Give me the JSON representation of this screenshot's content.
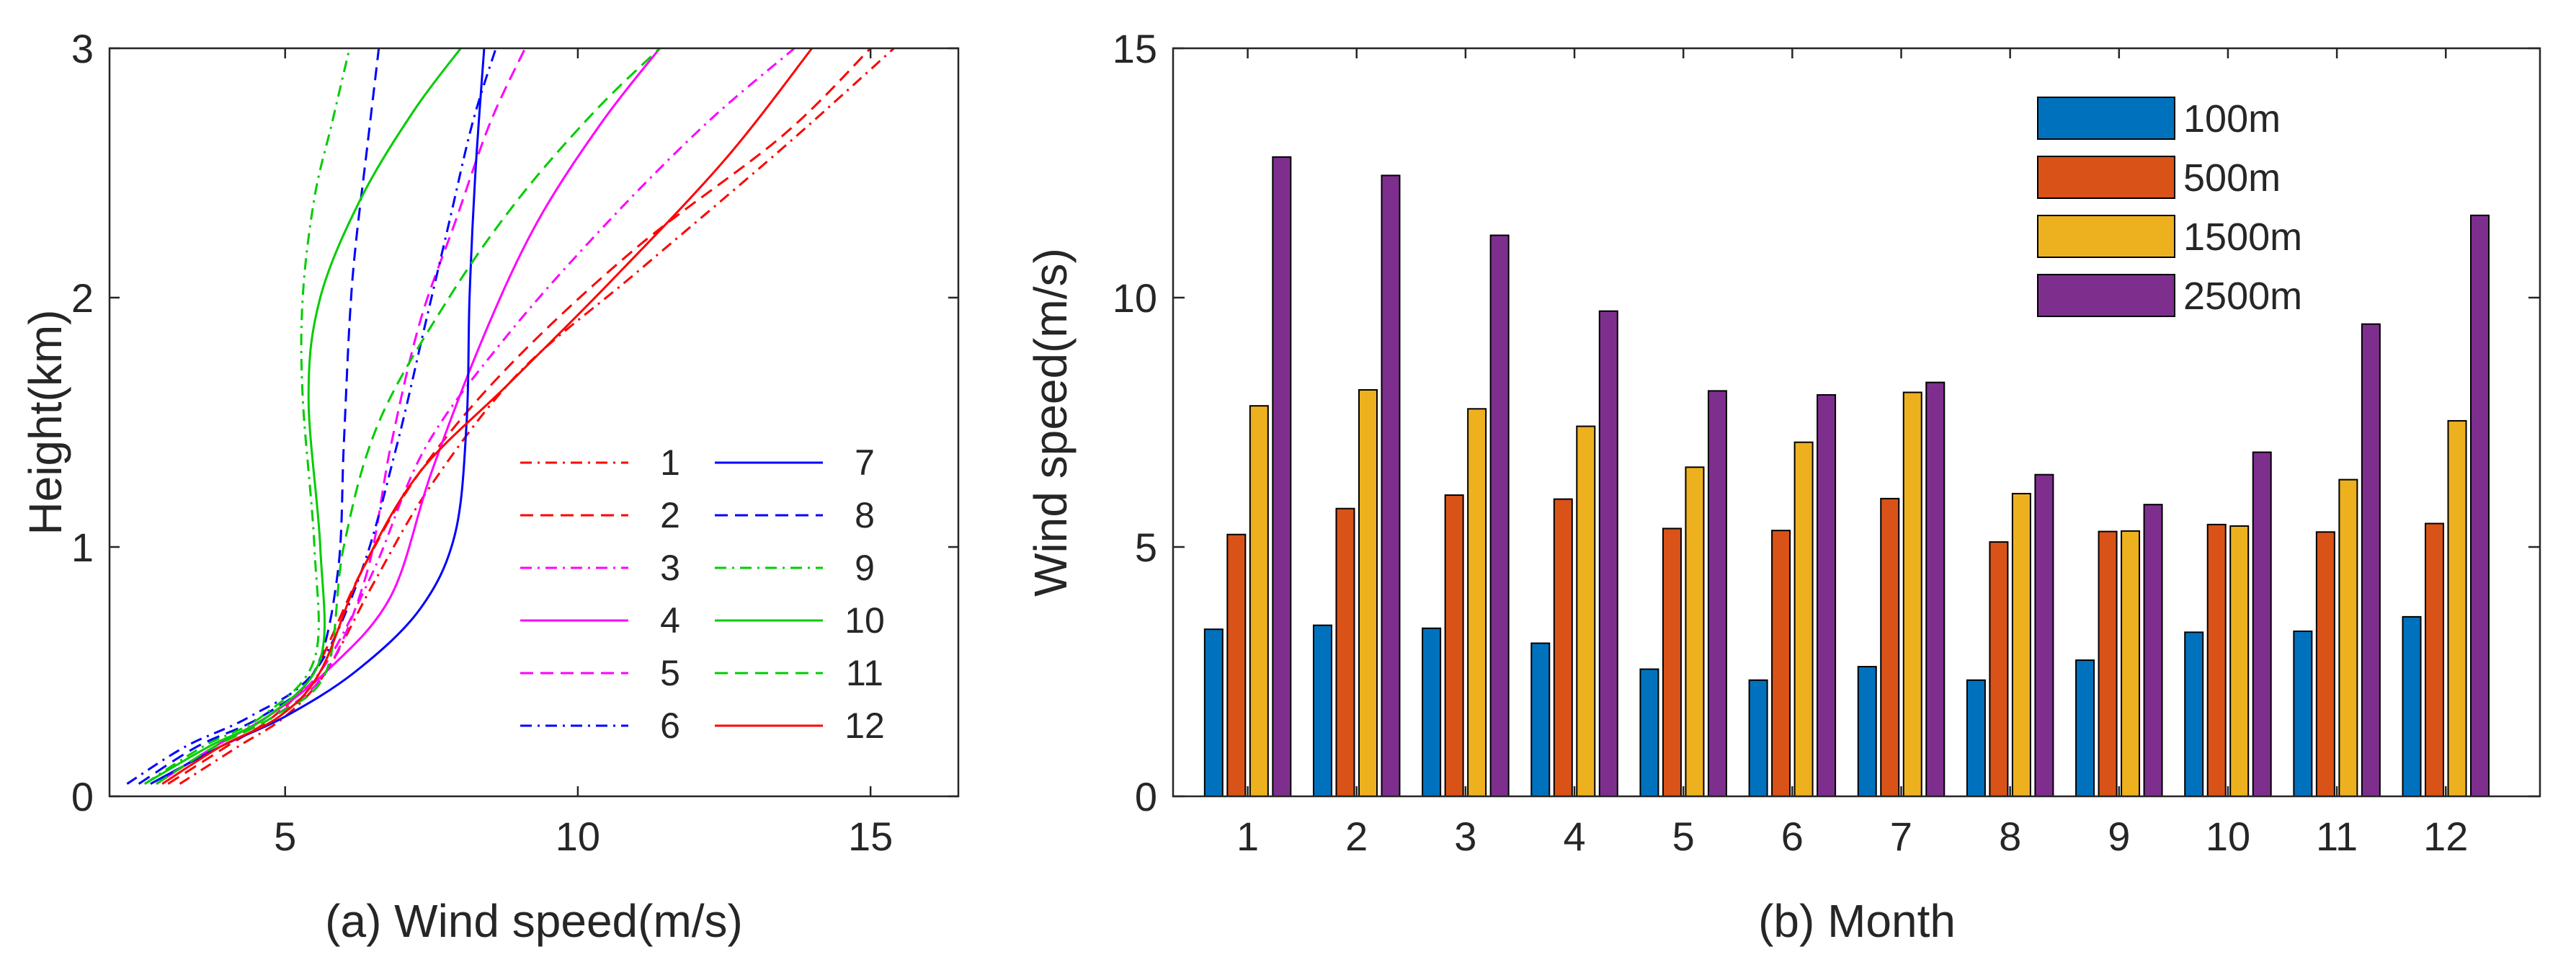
{
  "chart_data": [
    {
      "type": "line",
      "title": "",
      "xlabel": "(a) Wind speed(m/s)",
      "ylabel": "Height(km)",
      "xlim": [
        2,
        16.5
      ],
      "ylim": [
        0,
        3
      ],
      "xticks": [
        "5",
        "10",
        "15"
      ],
      "yticks": [
        "0",
        "1",
        "2",
        "3"
      ],
      "legend_position": "bottom-right",
      "series": [
        {
          "name": "1",
          "color": "#ff0000",
          "dash": "dashdot",
          "points": [
            [
              3.2,
              0.05
            ],
            [
              4.2,
              0.2
            ],
            [
              5.0,
              0.32
            ],
            [
              5.7,
              0.5
            ],
            [
              6.5,
              0.85
            ],
            [
              7.5,
              1.25
            ],
            [
              9.0,
              1.7
            ],
            [
              11.0,
              2.1
            ],
            [
              13.5,
              2.6
            ],
            [
              15.4,
              3.0
            ]
          ]
        },
        {
          "name": "2",
          "color": "#ff0000",
          "dash": "dashed",
          "points": [
            [
              3.0,
              0.05
            ],
            [
              4.0,
              0.2
            ],
            [
              4.8,
              0.32
            ],
            [
              5.5,
              0.5
            ],
            [
              6.3,
              0.9
            ],
            [
              7.3,
              1.3
            ],
            [
              8.8,
              1.72
            ],
            [
              11.0,
              2.2
            ],
            [
              13.5,
              2.65
            ],
            [
              15.0,
              3.0
            ]
          ]
        },
        {
          "name": "3",
          "color": "#ff00ff",
          "dash": "dashdot",
          "points": [
            [
              2.8,
              0.05
            ],
            [
              3.8,
              0.2
            ],
            [
              4.7,
              0.32
            ],
            [
              5.6,
              0.5
            ],
            [
              6.5,
              0.9
            ],
            [
              7.4,
              1.4
            ],
            [
              8.8,
              1.85
            ],
            [
              10.5,
              2.3
            ],
            [
              12.2,
              2.7
            ],
            [
              13.7,
              3.0
            ]
          ]
        },
        {
          "name": "4",
          "color": "#ff00ff",
          "dash": "solid",
          "points": [
            [
              2.8,
              0.05
            ],
            [
              3.8,
              0.2
            ],
            [
              4.7,
              0.32
            ],
            [
              5.7,
              0.5
            ],
            [
              6.8,
              0.8
            ],
            [
              7.5,
              1.3
            ],
            [
              8.4,
              1.85
            ],
            [
              9.3,
              2.3
            ],
            [
              10.4,
              2.7
            ],
            [
              11.4,
              3.0
            ]
          ]
        },
        {
          "name": "5",
          "color": "#ff00ff",
          "dash": "dashed",
          "points": [
            [
              2.8,
              0.05
            ],
            [
              3.8,
              0.2
            ],
            [
              4.8,
              0.32
            ],
            [
              5.7,
              0.5
            ],
            [
              6.4,
              0.9
            ],
            [
              6.8,
              1.4
            ],
            [
              7.3,
              1.9
            ],
            [
              7.9,
              2.3
            ],
            [
              8.5,
              2.7
            ],
            [
              9.1,
              3.0
            ]
          ]
        },
        {
          "name": "6",
          "color": "#0000ff",
          "dash": "dashdot",
          "points": [
            [
              2.3,
              0.05
            ],
            [
              3.3,
              0.2
            ],
            [
              4.4,
              0.32
            ],
            [
              5.5,
              0.5
            ],
            [
              6.3,
              0.9
            ],
            [
              6.9,
              1.4
            ],
            [
              7.4,
              1.9
            ],
            [
              7.8,
              2.3
            ],
            [
              8.2,
              2.7
            ],
            [
              8.6,
              3.0
            ]
          ]
        },
        {
          "name": "7",
          "color": "#0000ff",
          "dash": "solid",
          "points": [
            [
              2.7,
              0.05
            ],
            [
              3.9,
              0.2
            ],
            [
              5.0,
              0.32
            ],
            [
              6.2,
              0.5
            ],
            [
              7.3,
              0.75
            ],
            [
              7.9,
              1.05
            ],
            [
              8.1,
              1.5
            ],
            [
              8.15,
              2.0
            ],
            [
              8.25,
              2.5
            ],
            [
              8.4,
              3.0
            ]
          ]
        },
        {
          "name": "8",
          "color": "#0000ff",
          "dash": "dashed",
          "points": [
            [
              2.5,
              0.05
            ],
            [
              3.5,
              0.2
            ],
            [
              4.6,
              0.32
            ],
            [
              5.5,
              0.5
            ],
            [
              5.9,
              0.9
            ],
            [
              6.0,
              1.4
            ],
            [
              6.1,
              1.9
            ],
            [
              6.2,
              2.2
            ],
            [
              6.4,
              2.6
            ],
            [
              6.6,
              3.0
            ]
          ]
        },
        {
          "name": "9",
          "color": "#00cc00",
          "dash": "dashdot",
          "points": [
            [
              2.6,
              0.05
            ],
            [
              3.6,
              0.2
            ],
            [
              4.6,
              0.32
            ],
            [
              5.5,
              0.55
            ],
            [
              5.5,
              1.0
            ],
            [
              5.3,
              1.6
            ],
            [
              5.3,
              2.0
            ],
            [
              5.5,
              2.4
            ],
            [
              5.8,
              2.7
            ],
            [
              6.1,
              3.0
            ]
          ]
        },
        {
          "name": "10",
          "color": "#00cc00",
          "dash": "solid",
          "points": [
            [
              2.6,
              0.05
            ],
            [
              3.7,
              0.2
            ],
            [
              4.7,
              0.32
            ],
            [
              5.6,
              0.55
            ],
            [
              5.6,
              1.0
            ],
            [
              5.4,
              1.6
            ],
            [
              5.6,
              2.0
            ],
            [
              6.3,
              2.4
            ],
            [
              7.2,
              2.75
            ],
            [
              8.0,
              3.0
            ]
          ]
        },
        {
          "name": "11",
          "color": "#00cc00",
          "dash": "dashed",
          "points": [
            [
              2.8,
              0.05
            ],
            [
              3.8,
              0.2
            ],
            [
              4.8,
              0.32
            ],
            [
              5.7,
              0.5
            ],
            [
              6.0,
              1.0
            ],
            [
              6.6,
              1.5
            ],
            [
              7.8,
              2.0
            ],
            [
              9.0,
              2.4
            ],
            [
              10.3,
              2.75
            ],
            [
              11.4,
              3.0
            ]
          ]
        },
        {
          "name": "12",
          "color": "#ff0000",
          "dash": "solid",
          "points": [
            [
              2.9,
              0.05
            ],
            [
              3.9,
              0.2
            ],
            [
              4.9,
              0.32
            ],
            [
              5.6,
              0.5
            ],
            [
              6.3,
              0.9
            ],
            [
              7.3,
              1.3
            ],
            [
              8.8,
              1.65
            ],
            [
              10.5,
              2.05
            ],
            [
              12.5,
              2.55
            ],
            [
              14.0,
              3.0
            ]
          ]
        }
      ]
    },
    {
      "type": "bar",
      "title": "",
      "xlabel": "(b) Month",
      "ylabel": "Wind speed(m/s)",
      "ylim": [
        0,
        15
      ],
      "yticks": [
        "0",
        "5",
        "10",
        "15"
      ],
      "categories": [
        "1",
        "2",
        "3",
        "4",
        "5",
        "6",
        "7",
        "8",
        "9",
        "10",
        "11",
        "12"
      ],
      "legend_position": "top-right",
      "series": [
        {
          "name": "100m",
          "color": "#0072bd",
          "values": [
            3.35,
            3.43,
            3.37,
            3.07,
            2.55,
            2.33,
            2.6,
            2.33,
            2.73,
            3.29,
            3.31,
            3.6
          ]
        },
        {
          "name": "500m",
          "color": "#d95319",
          "values": [
            5.25,
            5.77,
            6.04,
            5.96,
            5.37,
            5.33,
            5.97,
            5.1,
            5.31,
            5.45,
            5.3,
            5.47
          ]
        },
        {
          "name": "1500m",
          "color": "#edb120",
          "values": [
            7.83,
            8.15,
            7.77,
            7.42,
            6.6,
            7.1,
            8.1,
            6.07,
            5.32,
            5.42,
            6.35,
            7.53
          ]
        },
        {
          "name": "2500m",
          "color": "#7e2f8e",
          "values": [
            12.82,
            12.45,
            11.25,
            9.73,
            8.13,
            8.05,
            8.3,
            6.45,
            5.85,
            6.9,
            9.47,
            11.65
          ]
        }
      ]
    }
  ]
}
